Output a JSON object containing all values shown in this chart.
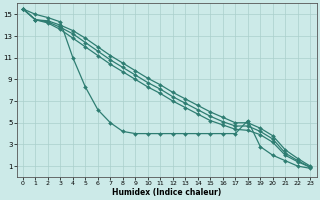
{
  "xlabel": "Humidex (Indice chaleur)",
  "bg_color": "#cceae8",
  "grid_color": "#aacfcc",
  "line_color": "#2e7d72",
  "xlim": [
    -0.5,
    23.5
  ],
  "ylim": [
    0,
    16
  ],
  "xticks": [
    0,
    1,
    2,
    3,
    4,
    5,
    6,
    7,
    8,
    9,
    10,
    11,
    12,
    13,
    14,
    15,
    16,
    17,
    18,
    19,
    20,
    21,
    22,
    23
  ],
  "yticks": [
    1,
    3,
    5,
    7,
    9,
    11,
    13,
    15
  ],
  "series": [
    {
      "x": [
        0,
        1,
        2,
        3,
        4,
        5,
        6,
        7,
        8,
        9,
        10,
        11,
        12,
        13,
        14,
        15,
        16,
        17,
        18,
        19,
        20,
        21,
        22,
        23
      ],
      "y": [
        15.5,
        15.0,
        14.7,
        14.3,
        11.0,
        8.3,
        6.2,
        5.0,
        4.2,
        4.0,
        4.0,
        4.0,
        4.0,
        4.0,
        4.0,
        4.0,
        4.0,
        4.0,
        5.2,
        2.8,
        2.0,
        1.5,
        1.0,
        0.8
      ]
    },
    {
      "x": [
        0,
        1,
        2,
        3,
        4,
        5,
        6,
        7,
        8,
        9,
        10,
        11,
        12,
        13,
        14,
        15,
        16,
        17,
        18,
        19,
        20,
        21,
        22,
        23
      ],
      "y": [
        15.5,
        14.5,
        14.4,
        14.0,
        13.5,
        12.8,
        12.0,
        11.2,
        10.5,
        9.8,
        9.1,
        8.5,
        7.8,
        7.2,
        6.6,
        6.0,
        5.5,
        5.0,
        5.0,
        4.5,
        3.8,
        2.5,
        1.7,
        1.0
      ]
    },
    {
      "x": [
        0,
        1,
        2,
        3,
        4,
        5,
        6,
        7,
        8,
        9,
        10,
        11,
        12,
        13,
        14,
        15,
        16,
        17,
        18,
        19,
        20,
        21,
        22,
        23
      ],
      "y": [
        15.5,
        14.5,
        14.3,
        13.8,
        13.2,
        12.4,
        11.6,
        10.8,
        10.1,
        9.4,
        8.7,
        8.1,
        7.4,
        6.8,
        6.2,
        5.6,
        5.1,
        4.7,
        4.7,
        4.2,
        3.5,
        2.2,
        1.5,
        0.9
      ]
    },
    {
      "x": [
        0,
        1,
        2,
        3,
        4,
        5,
        6,
        7,
        8,
        9,
        10,
        11,
        12,
        13,
        14,
        15,
        16,
        17,
        18,
        19,
        20,
        21,
        22,
        23
      ],
      "y": [
        15.5,
        14.5,
        14.2,
        13.6,
        12.8,
        12.0,
        11.2,
        10.4,
        9.7,
        9.0,
        8.3,
        7.7,
        7.0,
        6.4,
        5.8,
        5.2,
        4.8,
        4.4,
        4.3,
        3.9,
        3.2,
        2.0,
        1.4,
        0.9
      ]
    }
  ]
}
